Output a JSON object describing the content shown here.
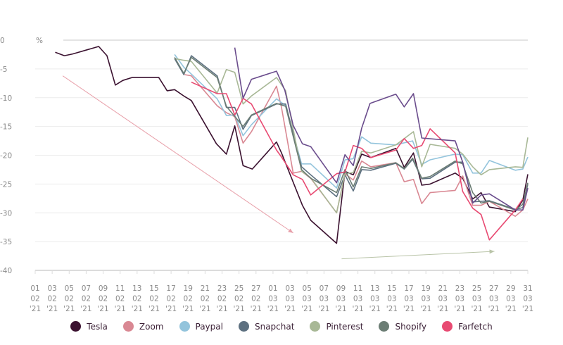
{
  "chart_data": {
    "type": "line",
    "title": "",
    "ylabel": "%",
    "xlabel": "",
    "ylim": [
      -40,
      0
    ],
    "xlim_days": [
      0,
      59
    ],
    "grid": true,
    "legend_position": "bottom-center",
    "y_ticks": [
      "0",
      "-5",
      "-10",
      "-15",
      "-20",
      "-25",
      "-30",
      "-35",
      "-40"
    ],
    "y_tick_values": [
      0,
      -5,
      -10,
      -15,
      -20,
      -25,
      -30,
      -35,
      -40
    ],
    "x_ticks": [
      [
        "01",
        "02",
        "'21"
      ],
      [
        "03",
        "02",
        "'21"
      ],
      [
        "05",
        "02",
        "'21"
      ],
      [
        "07",
        "02",
        "'21"
      ],
      [
        "09",
        "02",
        "'21"
      ],
      [
        "11",
        "02",
        "'21"
      ],
      [
        "13",
        "02",
        "'21"
      ],
      [
        "15",
        "02",
        "'21"
      ],
      [
        "17",
        "02",
        "'21"
      ],
      [
        "19",
        "02",
        "'21"
      ],
      [
        "21",
        "02",
        "'21"
      ],
      [
        "23",
        "02",
        "'21"
      ],
      [
        "25",
        "02",
        "'21"
      ],
      [
        "27",
        "02",
        "'21"
      ],
      [
        "01",
        "03",
        "'21"
      ],
      [
        "03",
        "03",
        "'21"
      ],
      [
        "05",
        "03",
        "'21"
      ],
      [
        "07",
        "03",
        "'21"
      ],
      [
        "09",
        "03",
        "'21"
      ],
      [
        "11",
        "03",
        "'21"
      ],
      [
        "13",
        "03",
        "'21"
      ],
      [
        "15",
        "03",
        "'21"
      ],
      [
        "17",
        "03",
        "'21"
      ],
      [
        "19",
        "03",
        "'21"
      ],
      [
        "21",
        "03",
        "'21"
      ],
      [
        "23",
        "03",
        "'21"
      ],
      [
        "25",
        "03",
        "'21"
      ],
      [
        "27",
        "03",
        "'21"
      ],
      [
        "29",
        "03",
        "'21"
      ],
      [
        "31",
        "03",
        "'21"
      ]
    ],
    "x_units": "days since 01 02 '21",
    "series": [
      {
        "name": "Tesla",
        "color": "#3b1230",
        "legend": true,
        "points": [
          [
            2.4,
            -2.1
          ],
          [
            3.5,
            -2.7
          ],
          [
            4.5,
            -2.4
          ],
          [
            7.6,
            -1.1
          ],
          [
            8.6,
            -2.7
          ],
          [
            9.6,
            -7.8
          ],
          [
            10.5,
            -7.0
          ],
          [
            11.6,
            -6.5
          ],
          [
            14.8,
            -6.5
          ],
          [
            15.8,
            -8.8
          ],
          [
            16.7,
            -8.6
          ],
          [
            17.9,
            -9.8
          ],
          [
            18.7,
            -10.5
          ],
          [
            21.7,
            -18.0
          ],
          [
            22.9,
            -19.8
          ],
          [
            23.9,
            -14.9
          ],
          [
            24.9,
            -21.8
          ],
          [
            26.0,
            -22.4
          ],
          [
            28.9,
            -17.7
          ],
          [
            29.5,
            -19.6
          ],
          [
            32.0,
            -28.7
          ],
          [
            33.0,
            -31.3
          ],
          [
            36.1,
            -35.3
          ],
          [
            37.1,
            -22.8
          ],
          [
            38.1,
            -23.4
          ],
          [
            39.1,
            -19.8
          ],
          [
            40.2,
            -20.4
          ],
          [
            43.2,
            -18.8
          ],
          [
            44.2,
            -22.1
          ],
          [
            45.3,
            -19.6
          ],
          [
            46.3,
            -25.2
          ],
          [
            47.3,
            -25.0
          ],
          [
            50.3,
            -23.1
          ],
          [
            51.2,
            -24.0
          ],
          [
            52.4,
            -27.6
          ],
          [
            53.4,
            -26.5
          ],
          [
            54.4,
            -29.0
          ],
          [
            57.5,
            -29.8
          ],
          [
            58.4,
            -27.8
          ],
          [
            59,
            -23.3
          ]
        ]
      },
      {
        "name": "Zoom",
        "color": "#d98893",
        "legend": true,
        "points": [
          [
            17.9,
            -6.0
          ],
          [
            18.7,
            -6.2
          ],
          [
            21.8,
            -11.4
          ],
          [
            22.9,
            -12.6
          ],
          [
            23.9,
            -13.3
          ],
          [
            24.9,
            -17.9
          ],
          [
            25.9,
            -15.9
          ],
          [
            28.9,
            -8.0
          ],
          [
            29.5,
            -11.7
          ],
          [
            30.9,
            -23.1
          ],
          [
            31.9,
            -22.8
          ],
          [
            33.0,
            -24.0
          ],
          [
            36.1,
            -30.0
          ],
          [
            37.1,
            -23.2
          ],
          [
            38.1,
            -24.3
          ],
          [
            39.1,
            -21.0
          ],
          [
            40.2,
            -22.0
          ],
          [
            43.2,
            -21.3
          ],
          [
            44.2,
            -24.6
          ],
          [
            45.3,
            -24.2
          ],
          [
            46.3,
            -28.4
          ],
          [
            47.3,
            -26.5
          ],
          [
            50.3,
            -26.1
          ],
          [
            51.2,
            -23.6
          ],
          [
            52.4,
            -28.7
          ],
          [
            53.4,
            -28.7
          ],
          [
            54.4,
            -28.0
          ],
          [
            57.5,
            -30.6
          ],
          [
            58.4,
            -29.5
          ],
          [
            59,
            -27.6
          ]
        ]
      },
      {
        "name": "Paypal",
        "color": "#93c4dc",
        "legend": true,
        "points": [
          [
            16.7,
            -2.5
          ],
          [
            17.8,
            -4.7
          ],
          [
            18.7,
            -5.9
          ],
          [
            21.8,
            -10.2
          ],
          [
            22.9,
            -13.1
          ],
          [
            23.9,
            -13.0
          ],
          [
            24.9,
            -16.6
          ],
          [
            25.9,
            -14.7
          ],
          [
            28.9,
            -10.2
          ],
          [
            30.0,
            -11.4
          ],
          [
            31.9,
            -21.5
          ],
          [
            33.0,
            -21.5
          ],
          [
            36.1,
            -25.7
          ],
          [
            37.1,
            -20.8
          ],
          [
            38.1,
            -20.6
          ],
          [
            39.1,
            -16.8
          ],
          [
            40.2,
            -17.9
          ],
          [
            43.1,
            -18.2
          ],
          [
            45.2,
            -17.5
          ],
          [
            46.3,
            -21.6
          ],
          [
            47.3,
            -20.8
          ],
          [
            50.3,
            -19.8
          ],
          [
            51.2,
            -19.9
          ],
          [
            52.4,
            -23.1
          ],
          [
            53.4,
            -23.1
          ],
          [
            54.4,
            -20.9
          ],
          [
            57.5,
            -22.6
          ],
          [
            58.4,
            -22.4
          ],
          [
            59,
            -20.3
          ]
        ]
      },
      {
        "name": "Snapchat",
        "color": "#5d7080",
        "legend": true,
        "points": [
          [
            16.7,
            -3.2
          ],
          [
            17.8,
            -6.0
          ],
          [
            18.7,
            -2.7
          ],
          [
            21.8,
            -6.2
          ],
          [
            22.9,
            -11.7
          ],
          [
            23.9,
            -11.7
          ],
          [
            24.9,
            -15.5
          ],
          [
            25.9,
            -13.1
          ],
          [
            28.9,
            -11.1
          ],
          [
            30.0,
            -11.1
          ],
          [
            31.9,
            -22.0
          ],
          [
            33.0,
            -23.4
          ],
          [
            36.1,
            -27.2
          ],
          [
            37.1,
            -23.4
          ],
          [
            38.1,
            -26.2
          ],
          [
            39.1,
            -22.5
          ],
          [
            40.2,
            -22.6
          ],
          [
            43.2,
            -21.4
          ],
          [
            44.2,
            -22.4
          ],
          [
            45.2,
            -20.7
          ],
          [
            46.3,
            -24.1
          ],
          [
            47.3,
            -24.0
          ],
          [
            50.3,
            -21.2
          ],
          [
            51.2,
            -21.2
          ],
          [
            52.4,
            -28.1
          ],
          [
            53.4,
            -28.0
          ],
          [
            54.4,
            -27.9
          ],
          [
            57.5,
            -29.4
          ],
          [
            58.4,
            -29.1
          ],
          [
            59,
            -25.0
          ]
        ]
      },
      {
        "name": "Pinterest",
        "color": "#a8b896",
        "legend": true,
        "points": [
          [
            16.7,
            -3.2
          ],
          [
            17.8,
            -3.5
          ],
          [
            18.7,
            -3.7
          ],
          [
            21.8,
            -9.2
          ],
          [
            22.9,
            -5.1
          ],
          [
            23.9,
            -5.6
          ],
          [
            24.9,
            -11.1
          ],
          [
            25.9,
            -9.7
          ],
          [
            28.9,
            -6.5
          ],
          [
            30.0,
            -8.8
          ],
          [
            31.9,
            -22.8
          ],
          [
            33.0,
            -23.9
          ],
          [
            36.1,
            -30.0
          ],
          [
            37.1,
            -23.2
          ],
          [
            38.1,
            -23.0
          ],
          [
            39.1,
            -19.3
          ],
          [
            40.2,
            -19.6
          ],
          [
            43.2,
            -18.2
          ],
          [
            45.3,
            -15.9
          ],
          [
            46.3,
            -22.0
          ],
          [
            47.3,
            -18.1
          ],
          [
            50.3,
            -18.8
          ],
          [
            51.2,
            -19.8
          ],
          [
            52.4,
            -22.0
          ],
          [
            53.4,
            -23.4
          ],
          [
            54.4,
            -22.5
          ],
          [
            57.5,
            -22.0
          ],
          [
            58.4,
            -22.1
          ],
          [
            59,
            -16.9
          ]
        ]
      },
      {
        "name": "Shopify",
        "color": "#6b7d74",
        "legend": true,
        "points": [
          [
            16.7,
            -3.0
          ],
          [
            17.8,
            -5.8
          ],
          [
            18.7,
            -3.0
          ],
          [
            21.8,
            -6.5
          ],
          [
            22.9,
            -11.5
          ],
          [
            24.9,
            -15.0
          ],
          [
            25.9,
            -13.0
          ],
          [
            28.9,
            -11.0
          ],
          [
            30.0,
            -11.5
          ],
          [
            31.9,
            -22.5
          ],
          [
            33.0,
            -24.0
          ],
          [
            36.1,
            -26.5
          ],
          [
            37.1,
            -22.5
          ],
          [
            38.1,
            -25.5
          ],
          [
            39.1,
            -22.0
          ],
          [
            40.2,
            -22.3
          ],
          [
            43.2,
            -21.3
          ],
          [
            44.2,
            -22.3
          ],
          [
            45.2,
            -20.5
          ],
          [
            46.3,
            -24.0
          ],
          [
            47.3,
            -23.7
          ],
          [
            50.3,
            -21.0
          ],
          [
            51.2,
            -21.5
          ],
          [
            52.4,
            -26.5
          ],
          [
            53.4,
            -28.3
          ],
          [
            54.4,
            -28.0
          ],
          [
            57.5,
            -29.5
          ],
          [
            58.4,
            -28.5
          ],
          [
            59,
            -24.8
          ]
        ]
      },
      {
        "name": "Farfetch",
        "color": "#e84a72",
        "legend": true,
        "points": [
          [
            18.7,
            -7.3
          ],
          [
            21.8,
            -9.3
          ],
          [
            22.9,
            -9.3
          ],
          [
            23.9,
            -13.0
          ],
          [
            24.9,
            -10.1
          ],
          [
            25.9,
            -11.1
          ],
          [
            28.9,
            -19.1
          ],
          [
            29.5,
            -20.3
          ],
          [
            30.9,
            -23.4
          ],
          [
            32.0,
            -24.2
          ],
          [
            33.0,
            -26.9
          ],
          [
            36.1,
            -23.2
          ],
          [
            37.1,
            -22.9
          ],
          [
            38.1,
            -18.3
          ],
          [
            39.1,
            -18.8
          ],
          [
            40.2,
            -20.4
          ],
          [
            43.2,
            -19.1
          ],
          [
            44.2,
            -17.1
          ],
          [
            45.3,
            -18.8
          ],
          [
            46.3,
            -18.3
          ],
          [
            47.3,
            -15.4
          ],
          [
            50.3,
            -19.6
          ],
          [
            51.2,
            -26.3
          ],
          [
            52.4,
            -29.2
          ],
          [
            53.4,
            -30.3
          ],
          [
            54.4,
            -34.7
          ],
          [
            57.5,
            -29.5
          ],
          [
            58.4,
            -27.6
          ]
        ]
      },
      {
        "name": "",
        "color": "#6a4c8c",
        "legend": false,
        "points": [
          [
            23.9,
            -1.3
          ],
          [
            24.9,
            -10.1
          ],
          [
            25.9,
            -6.8
          ],
          [
            28.9,
            -5.4
          ],
          [
            29.9,
            -8.7
          ],
          [
            30.9,
            -14.8
          ],
          [
            32.0,
            -18.0
          ],
          [
            33.0,
            -18.5
          ],
          [
            36.1,
            -24.8
          ],
          [
            37.1,
            -19.9
          ],
          [
            38.1,
            -21.8
          ],
          [
            39.1,
            -15.3
          ],
          [
            40.1,
            -11.0
          ],
          [
            43.2,
            -9.4
          ],
          [
            44.2,
            -11.6
          ],
          [
            45.3,
            -9.3
          ],
          [
            46.3,
            -17.0
          ],
          [
            50.3,
            -17.5
          ],
          [
            51.2,
            -21.2
          ],
          [
            52.4,
            -28.3
          ],
          [
            53.4,
            -26.9
          ],
          [
            54.4,
            -26.7
          ],
          [
            57.5,
            -29.5
          ],
          [
            58.4,
            -29.5
          ],
          [
            59,
            -25.7
          ]
        ]
      }
    ],
    "trend_lines": [
      {
        "color": "#e8a0aa",
        "from": [
          3.3,
          -6.2
        ],
        "to": [
          30.9,
          -33.5
        ]
      },
      {
        "color": "#b9c4a8",
        "from": [
          36.7,
          -38.0
        ],
        "to": [
          55.0,
          -36.7
        ]
      }
    ]
  }
}
